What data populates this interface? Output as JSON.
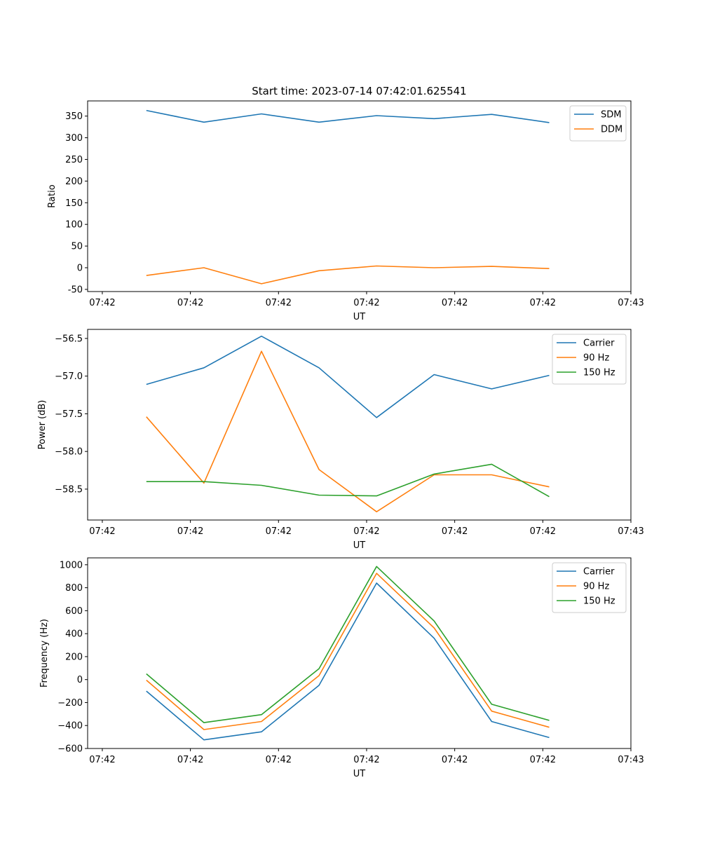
{
  "chart_data": [
    {
      "type": "line",
      "title": "Start time: 2023-07-14 07:42:01.625541",
      "xlabel": "UT",
      "ylabel": "Ratio",
      "xlim": [
        -0.25,
        9.0
      ],
      "ylim": [
        -55,
        385
      ],
      "yticks": [
        -50,
        0,
        50,
        100,
        150,
        200,
        250,
        300,
        350
      ],
      "xticks": [
        0,
        1.5,
        3,
        4.5,
        6,
        7.5,
        9
      ],
      "xtick_labels": [
        "07:42",
        "07:42",
        "07:42",
        "07:42",
        "07:42",
        "07:42",
        "07:43"
      ],
      "x": [
        0.75,
        1.73,
        2.71,
        3.69,
        4.67,
        5.65,
        6.63,
        7.61
      ],
      "legend_position": "top-right",
      "series": [
        {
          "name": "SDM",
          "color": "#1f77b4",
          "values": [
            363,
            336,
            355,
            336,
            351,
            344,
            354,
            335
          ]
        },
        {
          "name": "DDM",
          "color": "#ff7f0e",
          "values": [
            -18,
            0,
            -37,
            -7,
            4,
            0,
            3,
            -2
          ]
        }
      ]
    },
    {
      "type": "line",
      "title": "",
      "xlabel": "UT",
      "ylabel": "Power (dB)",
      "xlim": [
        -0.25,
        9.0
      ],
      "ylim": [
        -58.91,
        -56.38
      ],
      "yticks": [
        -58.5,
        -58.0,
        -57.5,
        -57.0,
        -56.5
      ],
      "ytick_labels": [
        "−58.5",
        "−58.0",
        "−57.5",
        "−57.0",
        "−56.5"
      ],
      "xticks": [
        0,
        1.5,
        3,
        4.5,
        6,
        7.5,
        9
      ],
      "xtick_labels": [
        "07:42",
        "07:42",
        "07:42",
        "07:42",
        "07:42",
        "07:42",
        "07:43"
      ],
      "x": [
        0.75,
        1.73,
        2.71,
        3.69,
        4.67,
        5.65,
        6.63,
        7.61
      ],
      "legend_position": "top-right",
      "series": [
        {
          "name": "Carrier",
          "color": "#1f77b4",
          "values": [
            -57.11,
            -56.89,
            -56.47,
            -56.89,
            -57.55,
            -56.98,
            -57.17,
            -56.99
          ]
        },
        {
          "name": "90 Hz",
          "color": "#ff7f0e",
          "values": [
            -57.54,
            -58.42,
            -56.67,
            -58.24,
            -58.8,
            -58.31,
            -58.31,
            -58.47
          ]
        },
        {
          "name": "150 Hz",
          "color": "#2ca02c",
          "values": [
            -58.4,
            -58.4,
            -58.45,
            -58.58,
            -58.59,
            -58.3,
            -58.17,
            -58.6
          ]
        }
      ]
    },
    {
      "type": "line",
      "title": "",
      "xlabel": "UT",
      "ylabel": "Frequency (Hz)",
      "xlim": [
        -0.25,
        9.0
      ],
      "ylim": [
        -600,
        1060
      ],
      "yticks": [
        -600,
        -400,
        -200,
        0,
        200,
        400,
        600,
        800,
        1000
      ],
      "ytick_labels": [
        "−600",
        "−400",
        "−200",
        "0",
        "200",
        "400",
        "600",
        "800",
        "1000"
      ],
      "xticks": [
        0,
        1.5,
        3,
        4.5,
        6,
        7.5,
        9
      ],
      "xtick_labels": [
        "07:42",
        "07:42",
        "07:42",
        "07:42",
        "07:42",
        "07:42",
        "07:43"
      ],
      "x": [
        0.75,
        1.73,
        2.71,
        3.69,
        4.67,
        5.65,
        6.63,
        7.61
      ],
      "legend_position": "top-right",
      "series": [
        {
          "name": "Carrier",
          "color": "#1f77b4",
          "values": [
            -100,
            -525,
            -455,
            -50,
            840,
            360,
            -365,
            -505
          ]
        },
        {
          "name": "90 Hz",
          "color": "#ff7f0e",
          "values": [
            -5,
            -435,
            -365,
            35,
            925,
            450,
            -275,
            -415
          ]
        },
        {
          "name": "150 Hz",
          "color": "#2ca02c",
          "values": [
            50,
            -375,
            -305,
            95,
            985,
            510,
            -215,
            -355
          ]
        }
      ]
    }
  ]
}
